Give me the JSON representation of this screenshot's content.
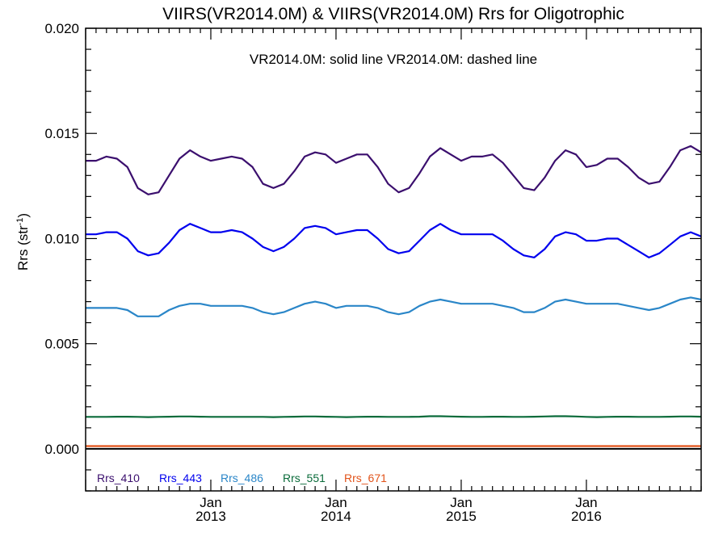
{
  "chart_data": {
    "type": "line",
    "title": "VIIRS(VR2014.0M) & VIIRS(VR2014.0M)  Rrs for Oligotrophic",
    "annotation": "VR2014.0M: solid line   VR2014.0M: dashed line",
    "ylabel": "Rrs (str",
    "ylabel_sup": "-1",
    "ylabel_close": ")",
    "ylim": [
      -0.002,
      0.02
    ],
    "y_ticks": [
      "0.000",
      "0.005",
      "0.010",
      "0.015",
      "0.020"
    ],
    "y_tick_values": [
      0.0,
      0.005,
      0.01,
      0.015,
      0.02
    ],
    "x_range": [
      "2012-01",
      "2016-12"
    ],
    "x_ticks": [
      {
        "month": "Jan",
        "year": "2013",
        "date": "2013-01"
      },
      {
        "month": "Jan",
        "year": "2014",
        "date": "2014-01"
      },
      {
        "month": "Jan",
        "year": "2015",
        "date": "2015-01"
      },
      {
        "month": "Jan",
        "year": "2016",
        "date": "2016-01"
      }
    ],
    "x": [
      "2012-01",
      "2012-02",
      "2012-03",
      "2012-04",
      "2012-05",
      "2012-06",
      "2012-07",
      "2012-08",
      "2012-09",
      "2012-10",
      "2012-11",
      "2012-12",
      "2013-01",
      "2013-02",
      "2013-03",
      "2013-04",
      "2013-05",
      "2013-06",
      "2013-07",
      "2013-08",
      "2013-09",
      "2013-10",
      "2013-11",
      "2013-12",
      "2014-01",
      "2014-02",
      "2014-03",
      "2014-04",
      "2014-05",
      "2014-06",
      "2014-07",
      "2014-08",
      "2014-09",
      "2014-10",
      "2014-11",
      "2014-12",
      "2015-01",
      "2015-02",
      "2015-03",
      "2015-04",
      "2015-05",
      "2015-06",
      "2015-07",
      "2015-08",
      "2015-09",
      "2015-10",
      "2015-11",
      "2015-12",
      "2016-01",
      "2016-02",
      "2016-03",
      "2016-04",
      "2016-05",
      "2016-06",
      "2016-07",
      "2016-08",
      "2016-09",
      "2016-10",
      "2016-11",
      "2016-12"
    ],
    "series": [
      {
        "name": "Rrs_410",
        "color": "#3b0f6e",
        "style": "solid",
        "values": [
          0.0137,
          0.0137,
          0.0139,
          0.0138,
          0.0134,
          0.0124,
          0.0121,
          0.0122,
          0.013,
          0.0138,
          0.0142,
          0.0139,
          0.0137,
          0.0138,
          0.0139,
          0.0138,
          0.0134,
          0.0126,
          0.0124,
          0.0126,
          0.0132,
          0.0139,
          0.0141,
          0.014,
          0.0136,
          0.0138,
          0.014,
          0.014,
          0.0134,
          0.0126,
          0.0122,
          0.0124,
          0.0131,
          0.0139,
          0.0143,
          0.014,
          0.0137,
          0.0139,
          0.0139,
          0.014,
          0.0136,
          0.013,
          0.0124,
          0.0123,
          0.0129,
          0.0137,
          0.0142,
          0.014,
          0.0134,
          0.0135,
          0.0138,
          0.0138,
          0.0134,
          0.0129,
          0.0126,
          0.0127,
          0.0134,
          0.0142,
          0.0144,
          0.0141
        ]
      },
      {
        "name": "Rrs_443",
        "color": "#0000ee",
        "style": "solid",
        "values": [
          0.0102,
          0.0102,
          0.0103,
          0.0103,
          0.01,
          0.0094,
          0.0092,
          0.0093,
          0.0098,
          0.0104,
          0.0107,
          0.0105,
          0.0103,
          0.0103,
          0.0104,
          0.0103,
          0.01,
          0.0096,
          0.0094,
          0.0096,
          0.01,
          0.0105,
          0.0106,
          0.0105,
          0.0102,
          0.0103,
          0.0104,
          0.0104,
          0.01,
          0.0095,
          0.0093,
          0.0094,
          0.0099,
          0.0104,
          0.0107,
          0.0104,
          0.0102,
          0.0102,
          0.0102,
          0.0102,
          0.0099,
          0.0095,
          0.0092,
          0.0091,
          0.0095,
          0.0101,
          0.0103,
          0.0102,
          0.0099,
          0.0099,
          0.01,
          0.01,
          0.0097,
          0.0094,
          0.0091,
          0.0093,
          0.0097,
          0.0101,
          0.0103,
          0.0101
        ]
      },
      {
        "name": "Rrs_486",
        "color": "#2a86c8",
        "style": "solid",
        "values": [
          0.0067,
          0.0067,
          0.0067,
          0.0067,
          0.0066,
          0.0063,
          0.0063,
          0.0063,
          0.0066,
          0.0068,
          0.0069,
          0.0069,
          0.0068,
          0.0068,
          0.0068,
          0.0068,
          0.0067,
          0.0065,
          0.0064,
          0.0065,
          0.0067,
          0.0069,
          0.007,
          0.0069,
          0.0067,
          0.0068,
          0.0068,
          0.0068,
          0.0067,
          0.0065,
          0.0064,
          0.0065,
          0.0068,
          0.007,
          0.0071,
          0.007,
          0.0069,
          0.0069,
          0.0069,
          0.0069,
          0.0068,
          0.0067,
          0.0065,
          0.0065,
          0.0067,
          0.007,
          0.0071,
          0.007,
          0.0069,
          0.0069,
          0.0069,
          0.0069,
          0.0068,
          0.0067,
          0.0066,
          0.0067,
          0.0069,
          0.0071,
          0.0072,
          0.0071
        ]
      },
      {
        "name": "Rrs_551",
        "color": "#0a6b3a",
        "style": "solid",
        "values": [
          0.00152,
          0.00152,
          0.00152,
          0.00153,
          0.00153,
          0.00152,
          0.00151,
          0.00152,
          0.00153,
          0.00154,
          0.00154,
          0.00153,
          0.00152,
          0.00152,
          0.00152,
          0.00152,
          0.00152,
          0.00152,
          0.00151,
          0.00152,
          0.00153,
          0.00154,
          0.00154,
          0.00153,
          0.00152,
          0.00151,
          0.00152,
          0.00153,
          0.00153,
          0.00152,
          0.00152,
          0.00152,
          0.00153,
          0.00155,
          0.00155,
          0.00154,
          0.00153,
          0.00152,
          0.00152,
          0.00153,
          0.00153,
          0.00152,
          0.00152,
          0.00153,
          0.00154,
          0.00155,
          0.00155,
          0.00154,
          0.00152,
          0.00151,
          0.00152,
          0.00153,
          0.00153,
          0.00152,
          0.00152,
          0.00152,
          0.00153,
          0.00154,
          0.00154,
          0.00153
        ]
      },
      {
        "name": "Rrs_671",
        "color": "#e2531a",
        "style": "solid",
        "values": [
          0.00013,
          0.00013,
          0.00013,
          0.00013,
          0.00013,
          0.00013,
          0.00013,
          0.00013,
          0.00013,
          0.00013,
          0.00013,
          0.00013,
          0.00013,
          0.00013,
          0.00013,
          0.00013,
          0.00013,
          0.00013,
          0.00013,
          0.00013,
          0.00013,
          0.00013,
          0.00013,
          0.00013,
          0.00013,
          0.00013,
          0.00013,
          0.00013,
          0.00013,
          0.00013,
          0.00013,
          0.00013,
          0.00013,
          0.00013,
          0.00013,
          0.00013,
          0.00013,
          0.00013,
          0.00013,
          0.00013,
          0.00013,
          0.00013,
          0.00013,
          0.00013,
          0.00013,
          0.00013,
          0.00013,
          0.00013,
          0.00013,
          0.00013,
          0.00013,
          0.00013,
          0.00013,
          0.00013,
          0.00013,
          0.00013,
          0.00013,
          0.00013,
          0.00013,
          0.00013
        ]
      }
    ],
    "zero_line": {
      "value": 0.0,
      "color": "#000000"
    },
    "grid": false,
    "legend": "bottom-left"
  }
}
